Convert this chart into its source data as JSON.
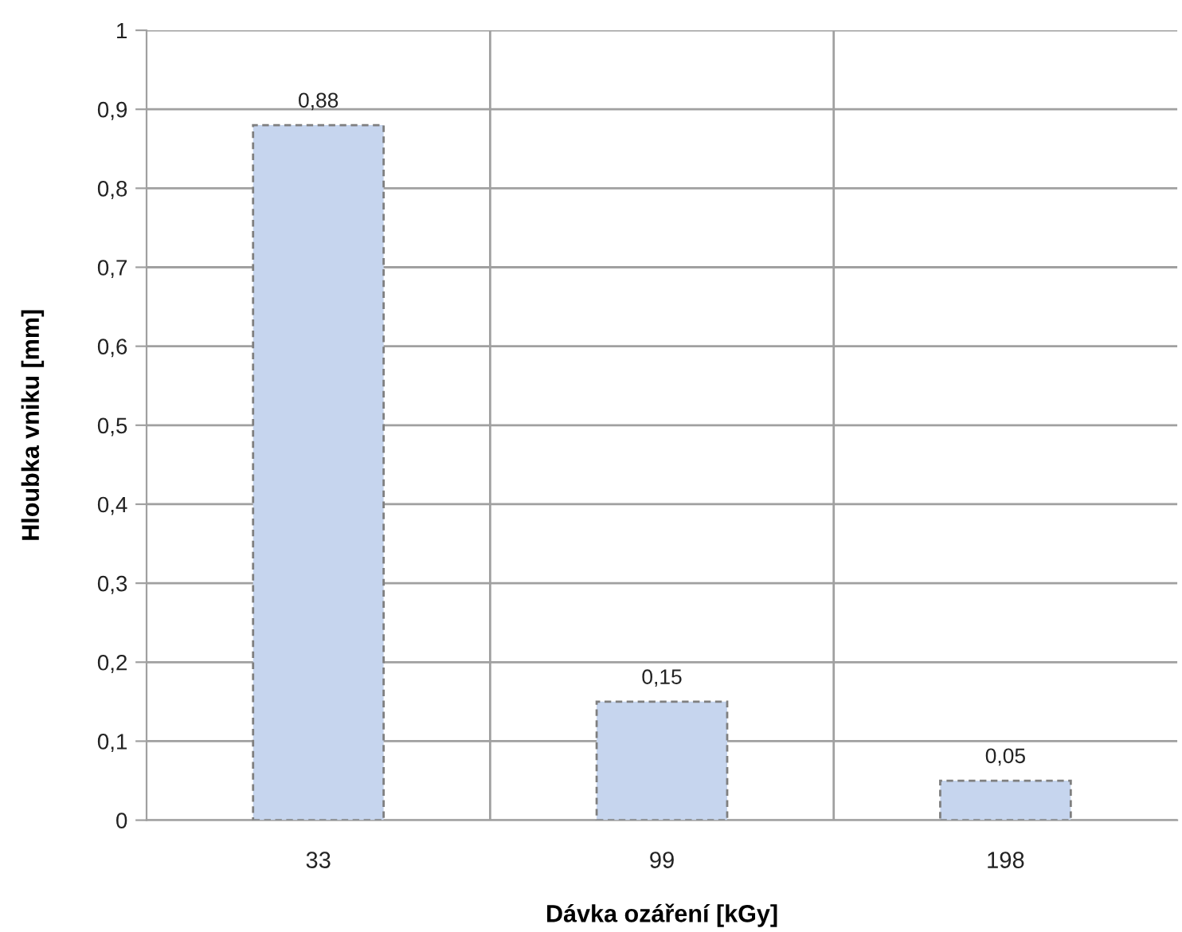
{
  "chart_data": {
    "type": "bar",
    "xlabel": "Dávka ozáření [kGy]",
    "ylabel": "Hloubka vniku [mm]",
    "categories": [
      "33",
      "99",
      "198"
    ],
    "values": [
      0.88,
      0.15,
      0.05
    ],
    "color": "#c6d5ee",
    "value_labels": [
      "0,88",
      "0,15",
      "0,05"
    ],
    "ylim": [
      0,
      1
    ],
    "yticks": [
      0,
      {
        "value": 0.1,
        "label": "0,1"
      },
      {
        "value": 0.2,
        "label": "0,2"
      },
      {
        "value": 0.3,
        "label": "0,3"
      },
      {
        "value": 0.4,
        "label": "0,4"
      },
      {
        "value": 0.5,
        "label": "0,5"
      },
      {
        "value": 0.6,
        "label": "0,6"
      },
      {
        "value": 0.7,
        "label": "0,7"
      },
      {
        "value": 0.8,
        "label": "0,8"
      },
      {
        "value": 0.9,
        "label": "0,9"
      },
      1
    ],
    "grid": true
  }
}
